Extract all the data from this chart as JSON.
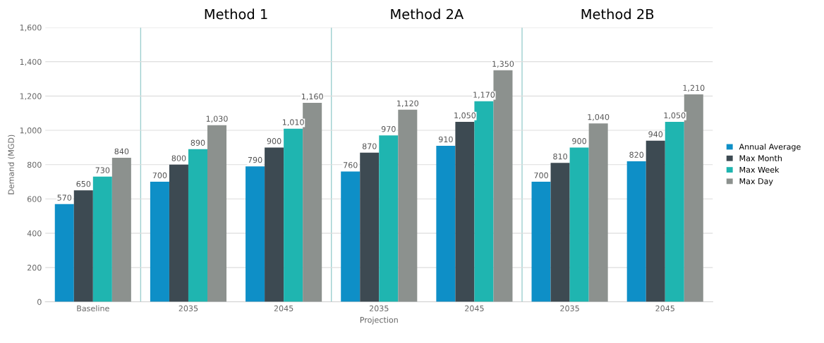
{
  "chart_data": {
    "type": "bar",
    "categories": [
      "Baseline",
      "2035",
      "2045",
      "2035",
      "2045",
      "2035",
      "2045"
    ],
    "series": [
      {
        "name": "Annual Average",
        "color": "#0e8fc7",
        "values": [
          570,
          700,
          790,
          760,
          910,
          700,
          820
        ],
        "value_labels": [
          "570",
          "700",
          "790",
          "760",
          "910",
          "700",
          "820"
        ]
      },
      {
        "name": "Max Month",
        "color": "#3d4a52",
        "values": [
          650,
          800,
          900,
          870,
          1050,
          810,
          940
        ],
        "value_labels": [
          "650",
          "800",
          "900",
          "870",
          "1,050",
          "810",
          "940"
        ]
      },
      {
        "name": "Max Week",
        "color": "#1fb5b0",
        "values": [
          730,
          890,
          1010,
          970,
          1170,
          900,
          1050
        ],
        "value_labels": [
          "730",
          "890",
          "1,010",
          "970",
          "1,170",
          "900",
          "1,050"
        ]
      },
      {
        "name": "Max Day",
        "color": "#8c918e",
        "values": [
          840,
          1030,
          1160,
          1120,
          1350,
          1040,
          1210
        ],
        "value_labels": [
          "840",
          "1,030",
          "1,160",
          "1,120",
          "1,350",
          "1,040",
          "1,210"
        ]
      }
    ],
    "xlabel": "Projection",
    "ylabel": "Demand (MGD)",
    "annotations": [
      "Method 1",
      "Method 2A",
      "Method 2B"
    ],
    "ylim": [
      0,
      1600
    ],
    "yticks": [
      0,
      {
        "value": 200,
        "label": "200"
      },
      {
        "value": 400,
        "label": "400"
      },
      {
        "value": 600,
        "label": "600"
      },
      {
        "value": 800,
        "label": "800"
      },
      {
        "value": 1000,
        "label": "1,000"
      },
      {
        "value": 1200,
        "label": "1,200"
      },
      {
        "value": 1400,
        "label": "1,400"
      },
      {
        "value": 1600,
        "label": "1,600"
      }
    ],
    "grid": "y",
    "legend": "right"
  }
}
